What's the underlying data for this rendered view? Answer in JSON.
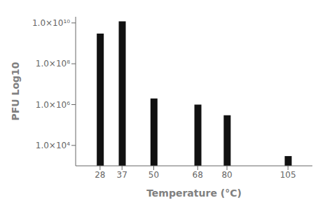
{
  "chart_data": {
    "type": "bar",
    "x": [
      28,
      37,
      50,
      68,
      80,
      105
    ],
    "values": [
      3000000000,
      12000000000,
      2000000,
      1000000,
      300000,
      3000
    ],
    "color": "#111111",
    "xlabel": "Temperature (°C)",
    "ylabel": "PFU Log10",
    "xlim": [
      18,
      115
    ],
    "xticks": [
      28,
      37,
      50,
      68,
      80,
      105
    ],
    "ylim": [
      1000,
      20000000000
    ],
    "yticks": [
      {
        "value": 10000,
        "label": "1.0×10⁴"
      },
      {
        "value": 1000000,
        "label": "1.0×10⁶"
      },
      {
        "value": 100000000,
        "label": "1.0×10⁸"
      },
      {
        "value": 10000000000,
        "label": "1.0×10¹⁰"
      }
    ],
    "log": "y",
    "grid": false
  }
}
